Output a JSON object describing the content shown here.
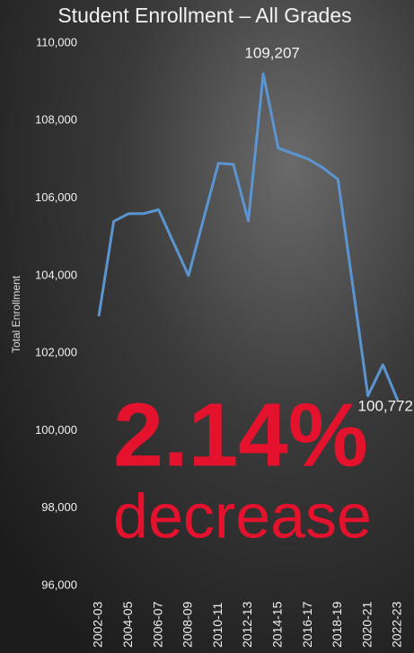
{
  "chart_data": {
    "type": "line",
    "title": "Student Enrollment – All Grades",
    "y_label": "Total Enrollment",
    "categories": [
      "2002-03",
      null,
      "2004-05",
      null,
      "2006-07",
      null,
      "2008-09",
      null,
      "2010-11",
      null,
      "2012-13",
      null,
      "2014-15",
      null,
      "2016-17",
      null,
      "2018-19",
      null,
      "2020-21",
      null,
      "2022-23"
    ],
    "values": [
      102950,
      105400,
      105600,
      105600,
      105700,
      104850,
      104000,
      105450,
      106900,
      106870,
      105410,
      109207,
      107290,
      107150,
      107010,
      106780,
      106480,
      103700,
      100900,
      101700,
      100772
    ],
    "value_labels": [
      null,
      null,
      null,
      null,
      null,
      null,
      null,
      null,
      null,
      null,
      null,
      "109,207",
      null,
      null,
      null,
      null,
      null,
      null,
      null,
      null,
      "100,772"
    ],
    "color": "#5b95d1",
    "ylim": [
      96000,
      110000
    ],
    "yticks": [
      {
        "value": 96000,
        "label": "96,000"
      },
      {
        "value": 98000,
        "label": "98,000"
      },
      {
        "value": 100000,
        "label": "100,000"
      },
      {
        "value": 102000,
        "label": "102,000"
      },
      {
        "value": 104000,
        "label": "104,000"
      },
      {
        "value": 106000,
        "label": "106,000"
      },
      {
        "value": 108000,
        "label": "108,000"
      },
      {
        "value": 110000,
        "label": "110,000"
      }
    ],
    "grid": false,
    "annotations": [
      "2.14%",
      "decrease"
    ],
    "annotation_color": "#e5122e"
  }
}
